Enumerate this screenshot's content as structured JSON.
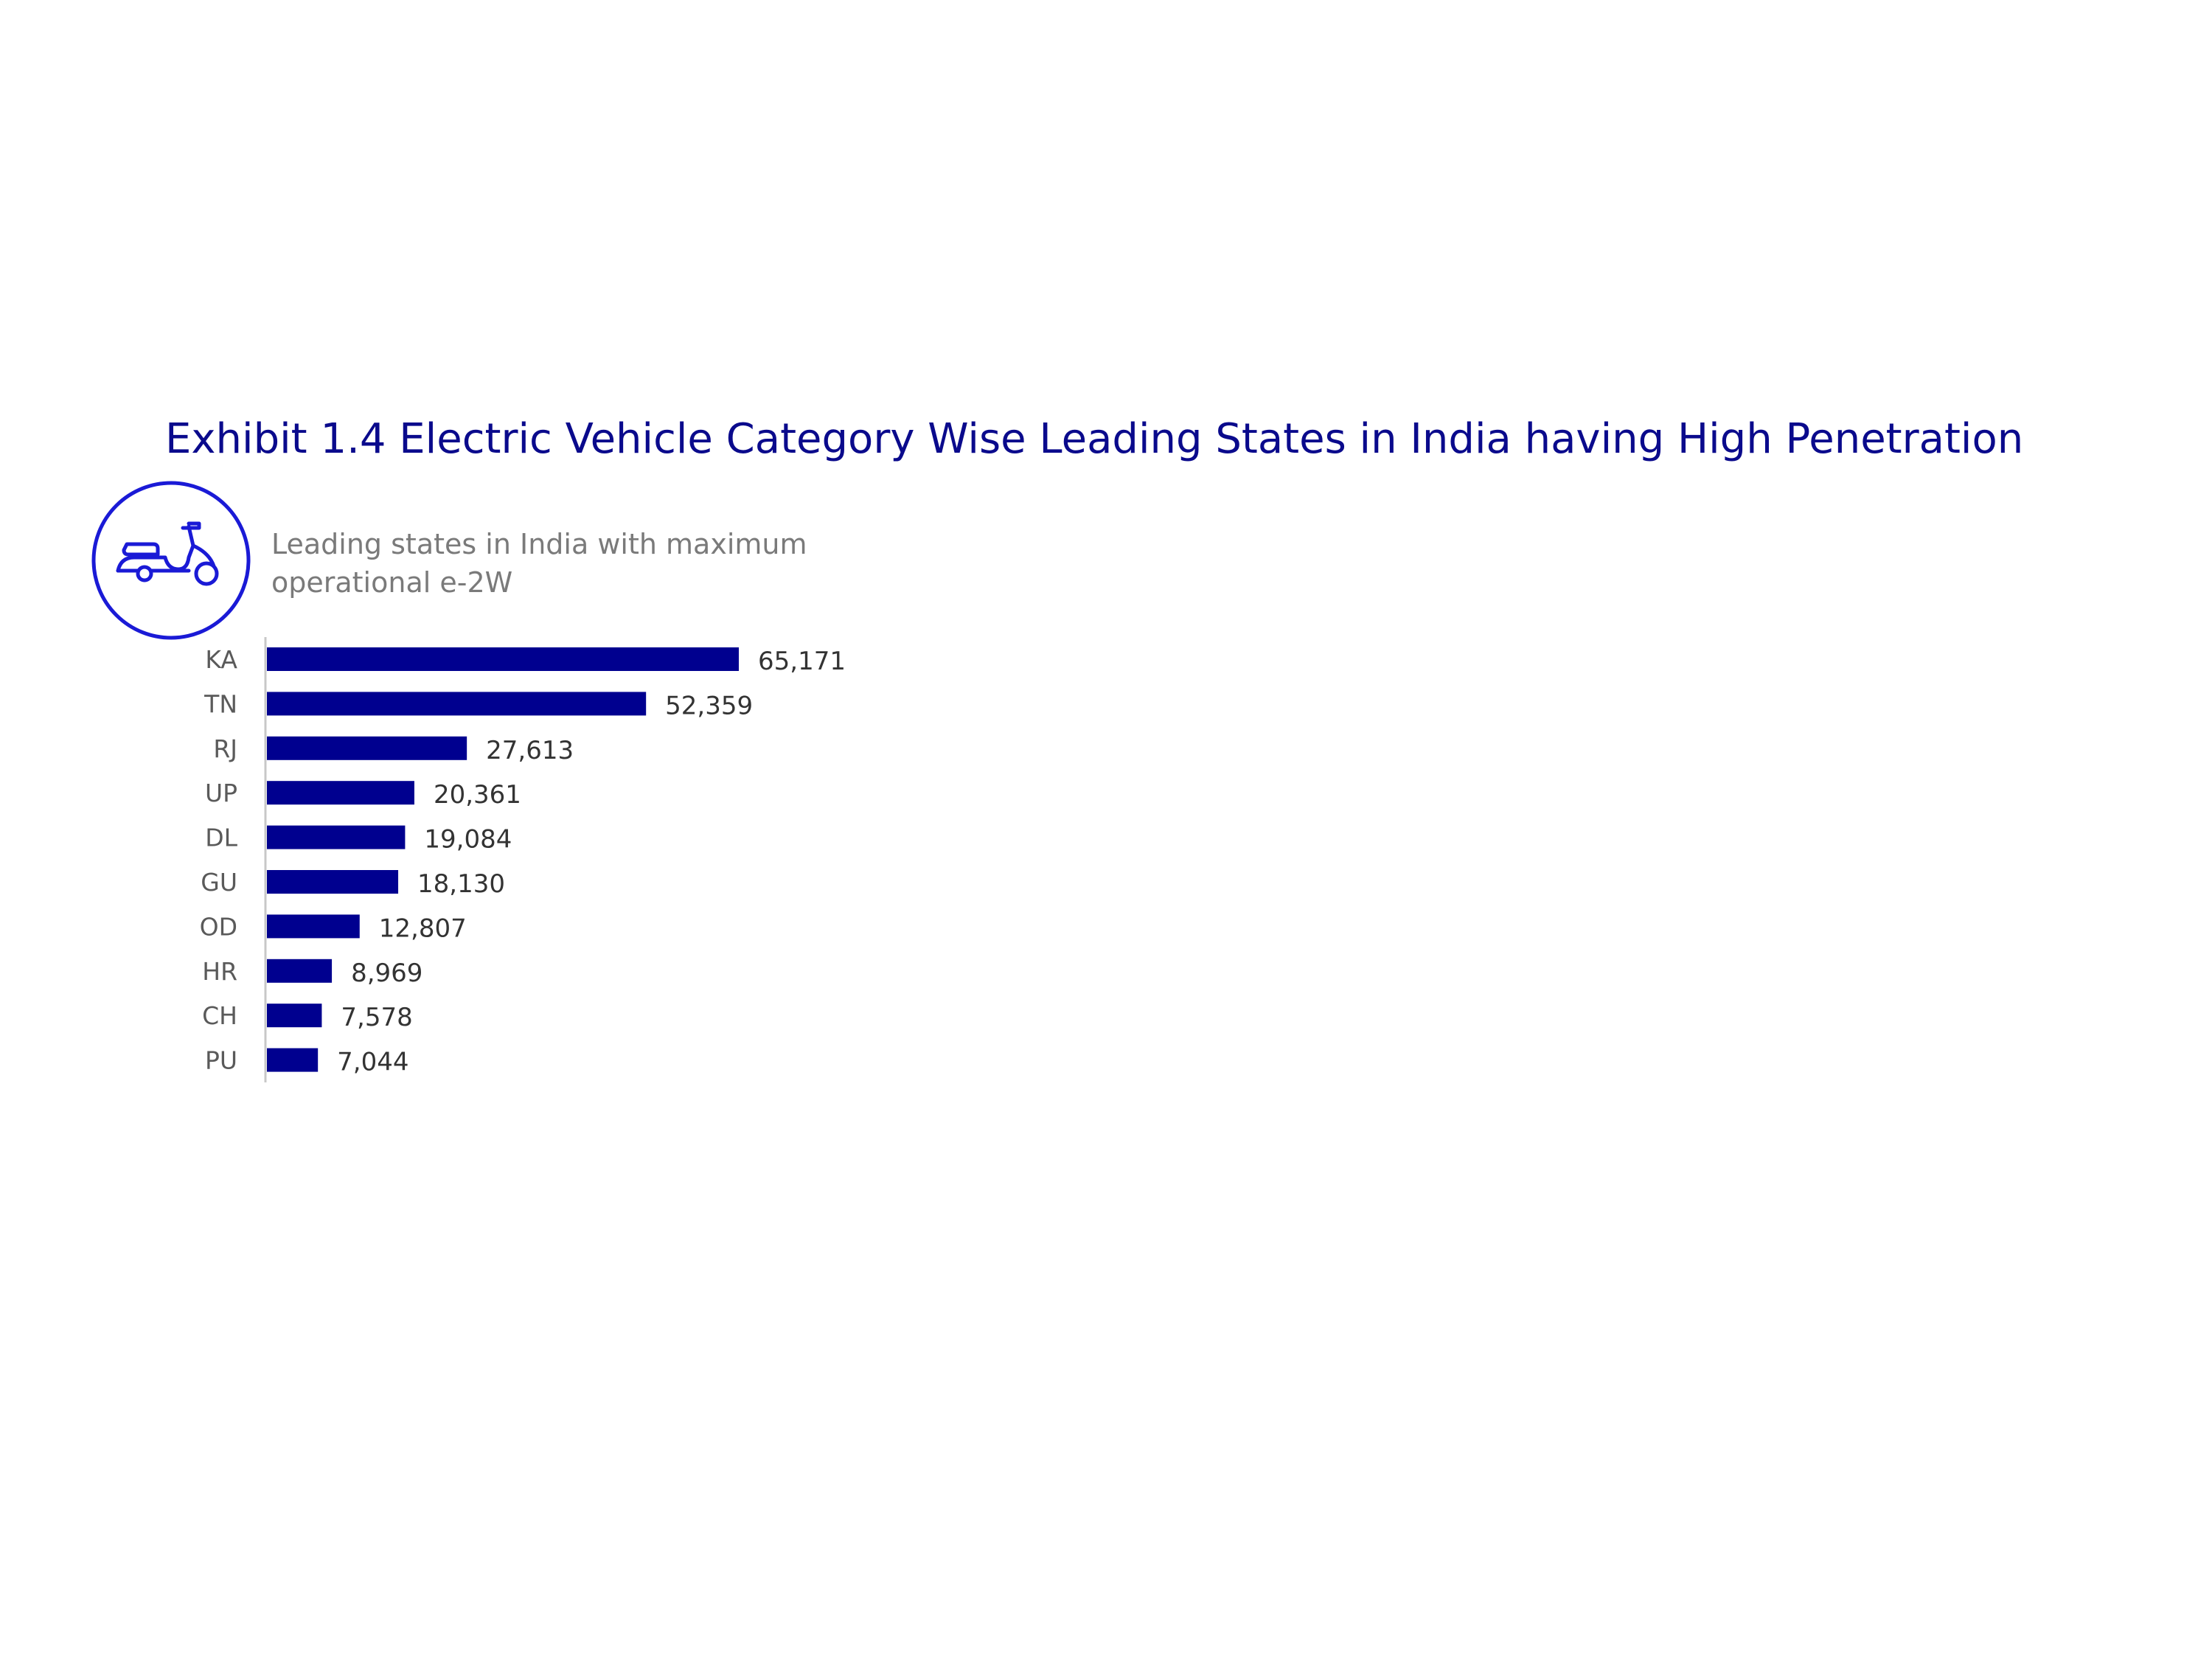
{
  "title": "Exhibit 1.4 Electric Vehicle Category Wise Leading States in India having High Penetration",
  "icon": "scooter-icon",
  "colors": {
    "title": "#0a0a8c",
    "bar": "#00008f",
    "icon": "#1a1ad6",
    "axis": "#c8c8c8"
  },
  "chart_data": {
    "type": "bar",
    "orientation": "horizontal",
    "subtitle_lines": [
      "Leading states in India with maximum",
      "operational e-2W"
    ],
    "categories": [
      "KA",
      "TN",
      "RJ",
      "UP",
      "DL",
      "GU",
      "OD",
      "HR",
      "CH",
      "PU"
    ],
    "values": [
      65171,
      52359,
      27613,
      20361,
      19084,
      18130,
      12807,
      8969,
      7578,
      7044
    ],
    "value_labels": [
      "65,171",
      "52,359",
      "27,613",
      "20,361",
      "19,084",
      "18,130",
      "12,807",
      "8,969",
      "7,578",
      "7,044"
    ],
    "grid": false,
    "legend": "none"
  }
}
